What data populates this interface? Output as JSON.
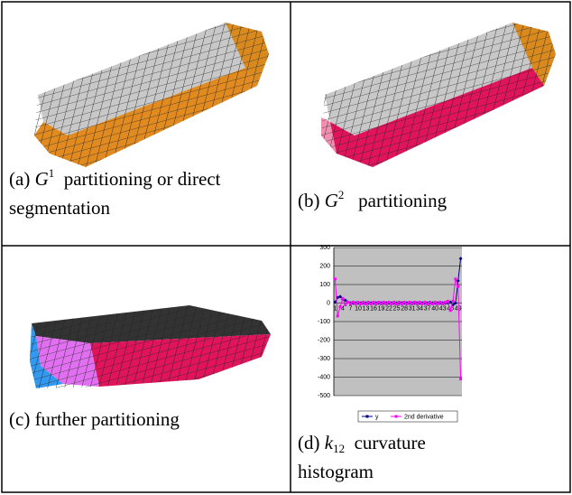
{
  "panels": [
    {
      "label": "(a)",
      "symbol": "G",
      "index": "1",
      "text": "partitioning or direct segmentation"
    },
    {
      "label": "(b)",
      "symbol": "G",
      "index": "2",
      "text": "partitioning"
    },
    {
      "label": "(c)",
      "text": "further partitioning"
    },
    {
      "label": "(d)",
      "symbol": "k",
      "index": "12",
      "text": "curvature histogram"
    }
  ],
  "chart_data": {
    "type": "line",
    "categories": [
      "1",
      null,
      null,
      "4",
      null,
      null,
      "7",
      null,
      null,
      "10",
      null,
      null,
      "13",
      null,
      null,
      "16",
      null,
      null,
      "19",
      null,
      null,
      "22",
      null,
      null,
      "25",
      null,
      null,
      "28",
      null,
      null,
      "31",
      null,
      null,
      "34",
      null,
      null,
      "37",
      null,
      null,
      "40",
      null,
      null,
      "43",
      null,
      null,
      "46",
      null,
      null,
      "49",
      null
    ],
    "series": [
      {
        "name": "y",
        "color": "#000080",
        "values": [
          5,
          30,
          35,
          20,
          15,
          5,
          0,
          0,
          0,
          0,
          0,
          0,
          0,
          0,
          0,
          0,
          0,
          0,
          0,
          0,
          0,
          0,
          0,
          0,
          0,
          0,
          0,
          0,
          0,
          0,
          0,
          0,
          0,
          0,
          0,
          0,
          0,
          0,
          0,
          0,
          0,
          0,
          0,
          0,
          0,
          5,
          -10,
          0,
          120,
          240
        ]
      },
      {
        "name": "2nd derivative",
        "color": "#ff00ff",
        "values": [
          130,
          -70,
          -20,
          25,
          -10,
          5,
          -5,
          5,
          -5,
          5,
          -5,
          5,
          -5,
          5,
          -5,
          5,
          -5,
          5,
          -5,
          5,
          -5,
          5,
          -5,
          5,
          -5,
          5,
          -5,
          5,
          -5,
          5,
          -5,
          5,
          -5,
          5,
          -5,
          5,
          -5,
          5,
          -5,
          5,
          -5,
          5,
          -5,
          5,
          10,
          -40,
          10,
          130,
          90,
          -410
        ]
      }
    ],
    "ylim": [
      -500,
      300
    ],
    "yticks": [
      -500,
      -400,
      -300,
      -200,
      -100,
      0,
      100,
      200,
      300
    ],
    "grid": true
  }
}
